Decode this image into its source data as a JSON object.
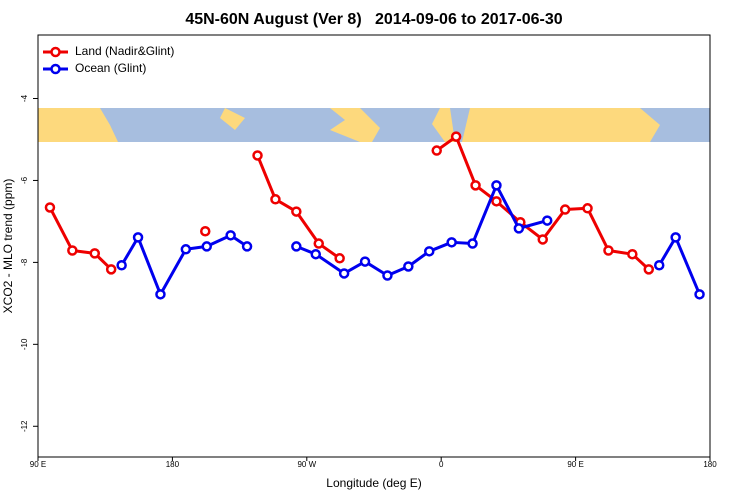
{
  "chart_data": {
    "type": "line",
    "title": "45N-60N August (Ver 8)   2014-09-06 to 2017-06-30",
    "x_label": "Longitude (deg E)",
    "y_label": "XCO2 - MLO trend (ppm)",
    "xlim": [
      90,
      540
    ],
    "ylim": [
      -12.75,
      -2.45
    ],
    "xticks": [
      {
        "value": 90,
        "label": "90 E"
      },
      {
        "value": 180,
        "label": "180"
      },
      {
        "value": 270,
        "label": "90 W"
      },
      {
        "value": 360,
        "label": "0"
      },
      {
        "value": 450,
        "label": "90 E"
      },
      {
        "value": 540,
        "label": "180"
      }
    ],
    "yticks": [
      -4,
      -6,
      -8,
      -10,
      -12
    ],
    "legend": "top-left",
    "series": [
      {
        "name": "Land (Nadir&Glint)",
        "color": "#ee0000",
        "x": [
          98,
          113,
          128,
          139,
          null,
          202,
          null,
          237,
          249,
          263,
          278,
          292,
          null,
          357,
          370,
          383,
          397,
          413,
          428,
          443,
          458,
          472,
          488,
          499
        ],
        "values": [
          -6.66,
          -7.71,
          -7.78,
          -8.17,
          null,
          -7.24,
          null,
          -5.39,
          -6.46,
          -6.76,
          -7.54,
          -7.9,
          null,
          -5.27,
          -4.93,
          -6.12,
          -6.51,
          -7.02,
          -7.44,
          -6.71,
          -6.68,
          -7.71,
          -7.8,
          -8.17
        ]
      },
      {
        "name": "Ocean (Glint)",
        "color": "#0000ee",
        "x": [
          146,
          157,
          172,
          189,
          203,
          219,
          230,
          null,
          263,
          276,
          295,
          309,
          324,
          338,
          352,
          367,
          381,
          397,
          412,
          431,
          null,
          506,
          517,
          533
        ],
        "values": [
          -8.07,
          -7.39,
          -8.78,
          -7.68,
          -7.61,
          -7.34,
          -7.61,
          null,
          -7.61,
          -7.8,
          -8.27,
          -7.98,
          -8.32,
          -8.1,
          -7.73,
          -7.51,
          -7.54,
          -6.12,
          -7.17,
          -6.98,
          null,
          -8.07,
          -7.39,
          -8.78
        ]
      }
    ]
  }
}
